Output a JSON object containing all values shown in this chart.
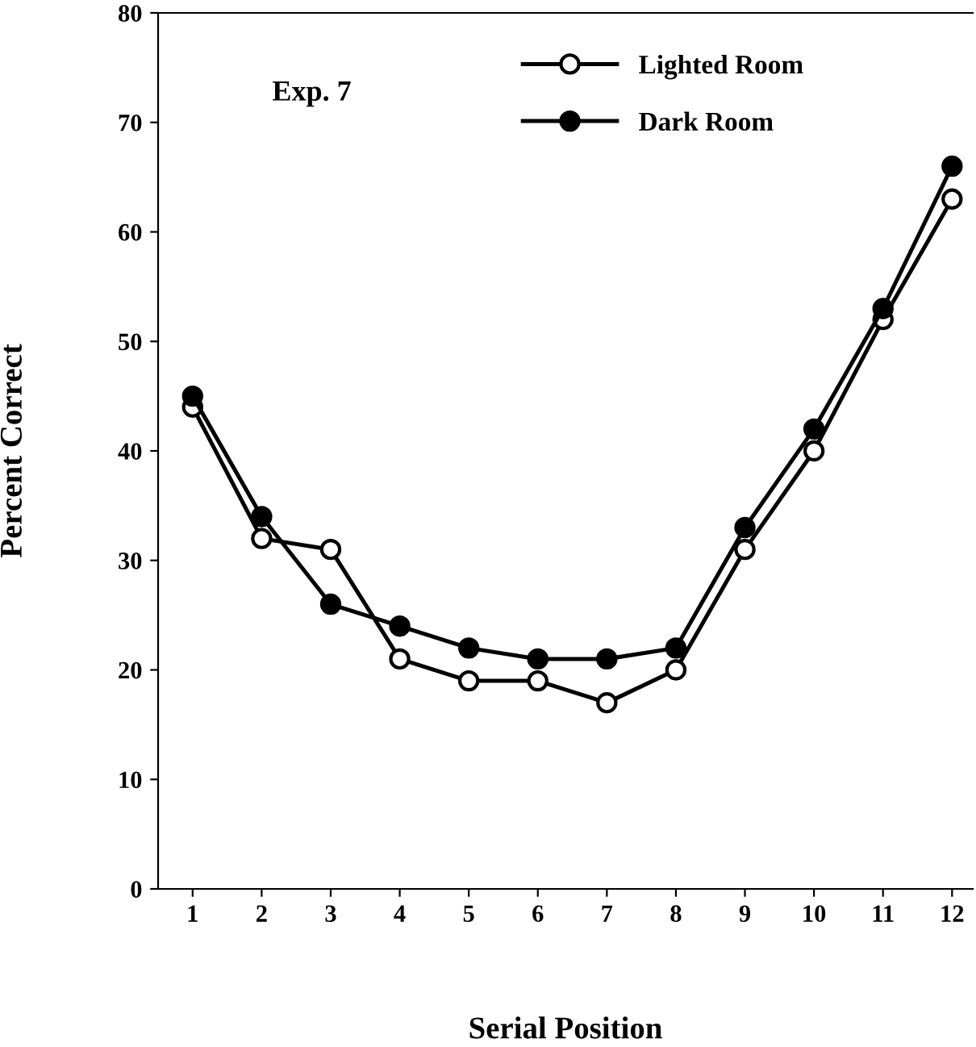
{
  "chart_data": {
    "type": "line",
    "xlabel": "Serial Position",
    "ylabel": "Percent Correct",
    "annotations": [
      "Exp. 7"
    ],
    "x": [
      1,
      2,
      3,
      4,
      5,
      6,
      7,
      8,
      9,
      10,
      11,
      12
    ],
    "series": [
      {
        "name": "Lighted Room",
        "color": "#000000",
        "marker": "circle",
        "values": [
          44,
          32,
          31,
          21,
          19,
          19,
          17,
          20,
          31,
          40,
          52,
          63
        ]
      },
      {
        "name": "Dark Room",
        "color": "#000000",
        "marker": "circle",
        "values": [
          45,
          34,
          26,
          24,
          22,
          21,
          21,
          22,
          33,
          42,
          53,
          66
        ]
      }
    ],
    "xlim": [
      0.5,
      12.3
    ],
    "xticks": [
      1,
      2,
      3,
      4,
      5,
      6,
      7,
      8,
      9,
      10,
      11,
      12
    ],
    "ylim": [
      0,
      80
    ],
    "yticks": [
      0,
      10,
      20,
      30,
      40,
      50,
      60,
      70,
      80
    ],
    "grid": false,
    "legend": "top",
    "line_style": "solid"
  }
}
